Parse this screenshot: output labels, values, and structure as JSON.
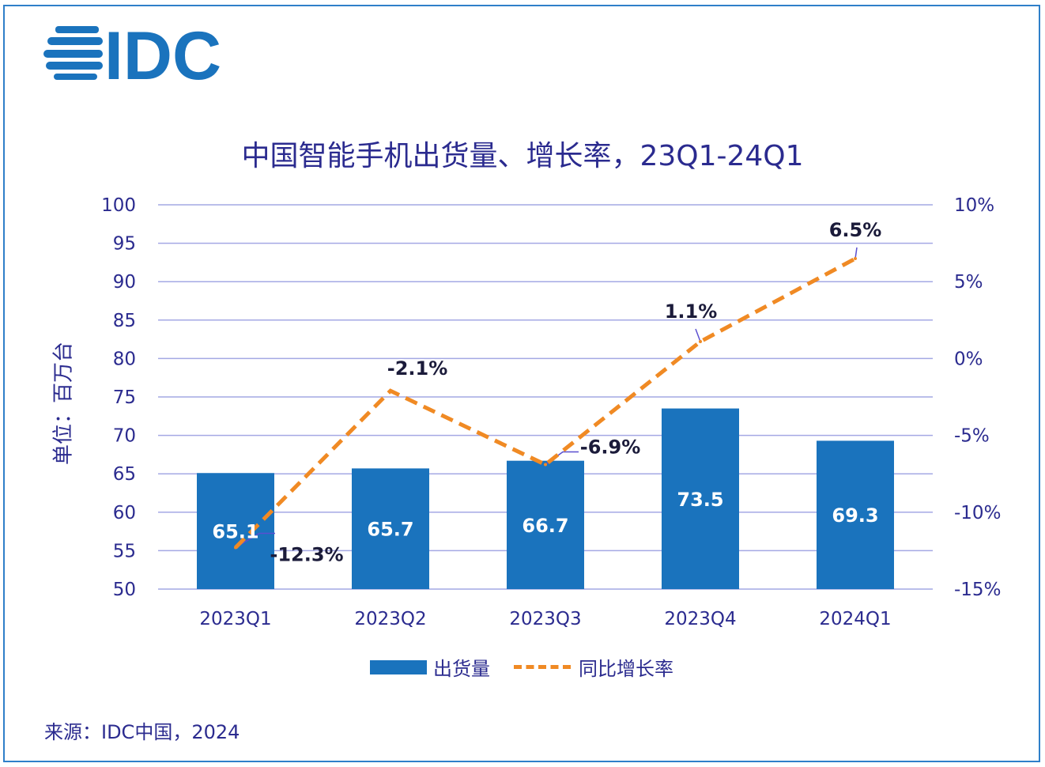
{
  "logo_text": "IDC",
  "colors": {
    "bar": "#1a73bd",
    "line": "#f08a24",
    "text": "#2b2b8f",
    "grid": "#a4a8e4",
    "frame": "#2f7fc9"
  },
  "source": "来源：IDC中国，2024",
  "chart_data": {
    "type": "bar+line",
    "title": "中国智能手机出货量、增长率，23Q1-24Q1",
    "ylabel": "单位：百万台",
    "categories": [
      "2023Q1",
      "2023Q2",
      "2023Q3",
      "2023Q4",
      "2024Q1"
    ],
    "series": [
      {
        "name": "出货量",
        "type": "bar",
        "axis": "left",
        "values": [
          65.1,
          65.7,
          66.7,
          73.5,
          69.3
        ],
        "labels": [
          "65.1",
          "65.7",
          "66.7",
          "73.5",
          "69.3"
        ]
      },
      {
        "name": "同比增长率",
        "type": "line",
        "style": "dashed",
        "axis": "right",
        "values": [
          -12.3,
          -2.1,
          -6.9,
          1.1,
          6.5
        ],
        "labels": [
          "-12.3%",
          "-2.1%",
          "-6.9%",
          "1.1%",
          "6.5%"
        ]
      }
    ],
    "ylim": [
      50,
      100
    ],
    "yticks": [
      "50",
      "55",
      "60",
      "65",
      "70",
      "75",
      "80",
      "85",
      "90",
      "95",
      "100"
    ],
    "y2lim": [
      -15,
      10
    ],
    "y2ticks": [
      "-15%",
      "-10%",
      "-5%",
      "0%",
      "5%",
      "10%"
    ],
    "grid": true,
    "legend_position": "bottom"
  }
}
